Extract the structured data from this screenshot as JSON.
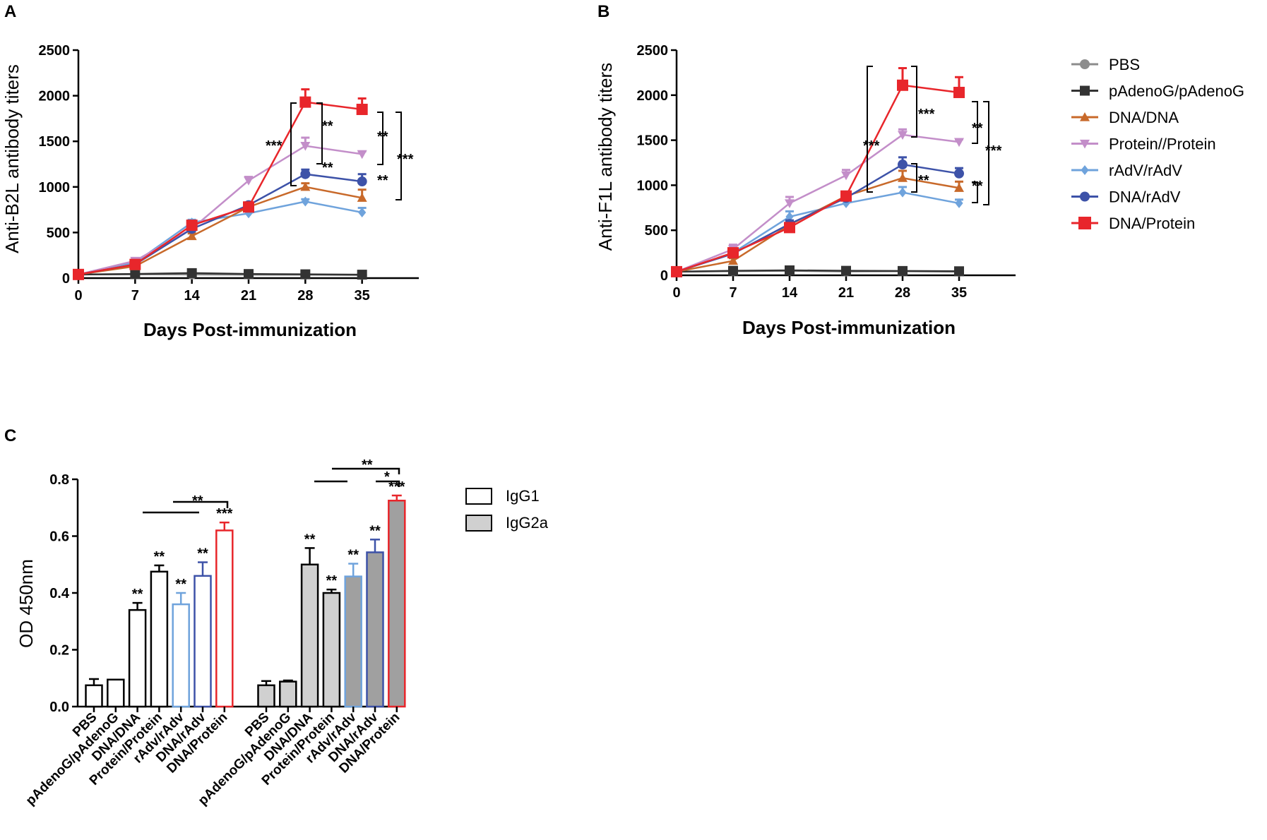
{
  "panels": {
    "a": "A",
    "b": "B",
    "c": "C"
  },
  "colors": {
    "PBS": "#8c8c8c",
    "pAdenoG": "#333333",
    "DNA_DNA": "#c8692a",
    "Protein": "#c38ec9",
    "rAdV": "#6fa3dc",
    "DNA_rAdV": "#3d52a8",
    "DNA_Protein": "#e8262b"
  },
  "legend": [
    {
      "label": "PBS",
      "color": "#8c8c8c",
      "marker": "circle"
    },
    {
      "label": "pAdenoG/pAdenoG",
      "color": "#333333",
      "marker": "square"
    },
    {
      "label": "DNA/DNA",
      "color": "#c8692a",
      "marker": "triangle-up"
    },
    {
      "label": "Protein//Protein",
      "color": "#c38ec9",
      "marker": "triangle-down"
    },
    {
      "label": "rAdV/rAdV",
      "color": "#6fa3dc",
      "marker": "diamond"
    },
    {
      "label": "DNA/rAdV",
      "color": "#3d52a8",
      "marker": "circle"
    },
    {
      "label": "DNA/Protein",
      "color": "#e8262b",
      "marker": "square"
    }
  ],
  "bar_legend": [
    {
      "label": "IgG1",
      "fill": "#ffffff"
    },
    {
      "label": "IgG2a",
      "fill": "#d0d0d0"
    }
  ],
  "chart_data": [
    {
      "type": "line",
      "title": "",
      "xlabel": "Days Post-immunization",
      "ylabel": "Anti-B2L antibody titers",
      "x": [
        0,
        7,
        14,
        21,
        28,
        35
      ],
      "xticks": [
        "0",
        "7",
        "14",
        "21",
        "28",
        "35"
      ],
      "yticks": [
        "0",
        "500",
        "1000",
        "1500",
        "2000",
        "2500"
      ],
      "ylim": [
        0,
        2500
      ],
      "xlim": [
        0,
        42
      ],
      "series": [
        {
          "name": "PBS",
          "values": [
            40,
            42,
            40,
            38,
            38,
            35
          ],
          "err": [
            0,
            0,
            0,
            0,
            0,
            0
          ]
        },
        {
          "name": "pAdenoG/pAdenoG",
          "values": [
            40,
            45,
            55,
            45,
            42,
            38
          ],
          "err": [
            0,
            0,
            0,
            0,
            0,
            0
          ]
        },
        {
          "name": "DNA/DNA",
          "values": [
            40,
            130,
            460,
            780,
            1000,
            880
          ],
          "err": [
            0,
            20,
            30,
            40,
            40,
            90
          ]
        },
        {
          "name": "Protein//Protein",
          "values": [
            40,
            190,
            540,
            1070,
            1450,
            1360
          ],
          "err": [
            0,
            30,
            40,
            40,
            90,
            30
          ]
        },
        {
          "name": "rAdV/rAdV",
          "values": [
            40,
            170,
            610,
            710,
            840,
            720
          ],
          "err": [
            0,
            20,
            30,
            30,
            25,
            50
          ]
        },
        {
          "name": "DNA/rAdV",
          "values": [
            40,
            150,
            540,
            800,
            1140,
            1060
          ],
          "err": [
            0,
            20,
            30,
            30,
            50,
            80
          ]
        },
        {
          "name": "DNA/Protein",
          "values": [
            40,
            150,
            580,
            780,
            1930,
            1850
          ],
          "err": [
            0,
            20,
            30,
            40,
            140,
            120
          ]
        }
      ],
      "annotations": [
        "**",
        "***",
        "**",
        "**",
        "**",
        "***"
      ]
    },
    {
      "type": "line",
      "title": "",
      "xlabel": "Days Post-immunization",
      "ylabel": "Anti-F1L antibody titers",
      "x": [
        0,
        7,
        14,
        21,
        28,
        35
      ],
      "xticks": [
        "0",
        "7",
        "14",
        "21",
        "28",
        "35"
      ],
      "yticks": [
        "0",
        "500",
        "1000",
        "1500",
        "2000",
        "2500"
      ],
      "ylim": [
        0,
        2500
      ],
      "xlim": [
        0,
        42
      ],
      "series": [
        {
          "name": "PBS",
          "values": [
            40,
            45,
            50,
            42,
            45,
            40
          ],
          "err": [
            0,
            0,
            0,
            0,
            0,
            0
          ]
        },
        {
          "name": "pAdenoG/pAdenoG",
          "values": [
            40,
            50,
            55,
            50,
            48,
            45
          ],
          "err": [
            0,
            0,
            0,
            0,
            0,
            0
          ]
        },
        {
          "name": "DNA/DNA",
          "values": [
            40,
            160,
            560,
            880,
            1080,
            970
          ],
          "err": [
            0,
            30,
            40,
            40,
            80,
            70
          ]
        },
        {
          "name": "Protein//Protein",
          "values": [
            40,
            290,
            800,
            1110,
            1560,
            1480
          ],
          "err": [
            0,
            50,
            70,
            60,
            60,
            30
          ]
        },
        {
          "name": "rAdV/rAdV",
          "values": [
            40,
            250,
            650,
            800,
            920,
            800
          ],
          "err": [
            0,
            30,
            60,
            40,
            60,
            40
          ]
        },
        {
          "name": "DNA/rAdV",
          "values": [
            40,
            240,
            570,
            860,
            1230,
            1130
          ],
          "err": [
            0,
            30,
            40,
            40,
            80,
            60
          ]
        },
        {
          "name": "DNA/Protein",
          "values": [
            40,
            250,
            530,
            880,
            2110,
            2030
          ],
          "err": [
            0,
            30,
            40,
            40,
            190,
            170
          ]
        }
      ],
      "annotations": [
        "***",
        "***",
        "**",
        "**",
        "**",
        "***"
      ]
    },
    {
      "type": "bar",
      "title": "",
      "xlabel": "",
      "ylabel": "OD 450nm",
      "yticks": [
        "0.0",
        "0.2",
        "0.4",
        "0.6",
        "0.8"
      ],
      "ylim": [
        0,
        0.8
      ],
      "categories": [
        "PBS",
        "pAdenoG/pAdenoG",
        "DNA/DNA",
        "Protein/Protein",
        "rAdv/rAdv",
        "DNA/rAdv",
        "DNA/Protein"
      ],
      "series": [
        {
          "name": "IgG1",
          "values": [
            0.075,
            0.095,
            0.34,
            0.475,
            0.36,
            0.46,
            0.62
          ],
          "err": [
            0.022,
            0.0,
            0.025,
            0.022,
            0.04,
            0.048,
            0.028
          ],
          "edge": [
            "#000000",
            "#000000",
            "#000000",
            "#000000",
            "#6fa3dc",
            "#3d52a8",
            "#e8262b"
          ],
          "fill": [
            "#ffffff",
            "#ffffff",
            "#ffffff",
            "#ffffff",
            "#ffffff",
            "#ffffff",
            "#ffffff"
          ],
          "stars": [
            "",
            "",
            "**",
            "**",
            "**",
            "**",
            "***"
          ]
        },
        {
          "name": "IgG2a",
          "values": [
            0.075,
            0.088,
            0.5,
            0.4,
            0.458,
            0.543,
            0.725
          ],
          "err": [
            0.015,
            0.004,
            0.058,
            0.012,
            0.045,
            0.045,
            0.018
          ],
          "edge": [
            "#000000",
            "#000000",
            "#000000",
            "#000000",
            "#6fa3dc",
            "#3d52a8",
            "#e8262b"
          ],
          "fill": [
            "#d0d0d0",
            "#d0d0d0",
            "#d0d0d0",
            "#d0d0d0",
            "#a0a0a0",
            "#a0a0a0",
            "#a0a0a0"
          ],
          "stars": [
            "",
            "",
            "**",
            "**",
            "**",
            "**",
            "***"
          ]
        }
      ],
      "annotations": [
        "**",
        "**",
        "*"
      ]
    }
  ]
}
